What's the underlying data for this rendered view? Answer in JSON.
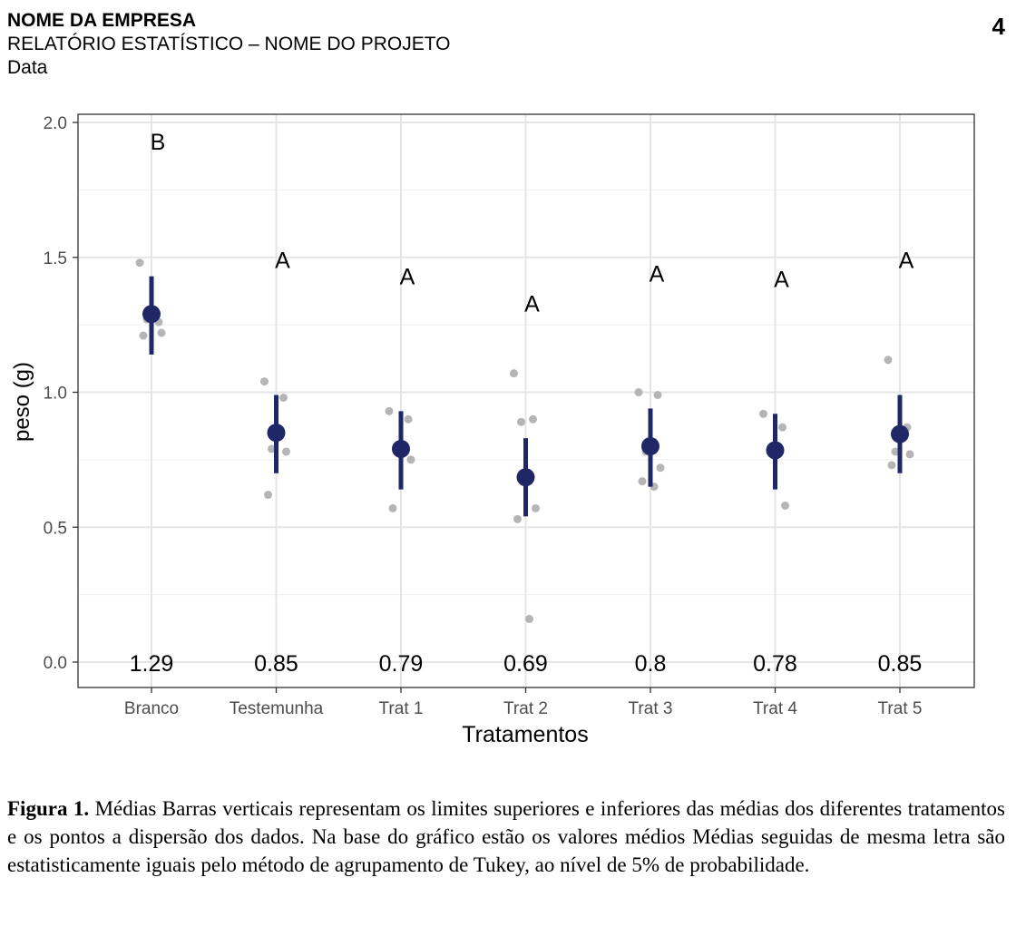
{
  "header": {
    "company": "NOME DA EMPRESA",
    "report": "RELATÓRIO ESTATÍSTICO – NOME DO PROJETO",
    "date": "Data",
    "page_number": "4"
  },
  "caption": {
    "label": "Figura 1.",
    "text": " Médias                                         Barras verticais representam os limites superiores e inferiores das médias dos diferentes tratamentos e os pontos a dispersão dos dados. Na base do gráfico estão os valores médios                                Médias seguidas de mesma letra são estatisticamente iguais pelo método de agrupamento de Tukey, ao nível de 5% de probabilidade."
  },
  "colors": {
    "mean": "#1f2766",
    "points": "#b5b5b5",
    "grid_major": "#e5e5e5",
    "grid_minor": "#f2f2f2",
    "panel_border": "#333333"
  },
  "chart_data": {
    "type": "scatter",
    "xlabel": "Tratamentos",
    "ylabel": "peso (g)",
    "ylim": [
      -0.09,
      2.02
    ],
    "yticks": [
      "0.0",
      "0.5",
      "1.0",
      "1.5",
      "2.0"
    ],
    "grid": true,
    "categories": [
      "Branco",
      "Testemunha",
      "Trat 1",
      "Trat 2",
      "Trat 3",
      "Trat 4",
      "Trat 5"
    ],
    "means": [
      1.29,
      0.85,
      0.79,
      0.685,
      0.8,
      0.785,
      0.845
    ],
    "mean_labels": [
      "1.29",
      "0.85",
      "0.79",
      "0.69",
      "0.8",
      "0.78",
      "0.85"
    ],
    "lower": [
      1.14,
      0.7,
      0.64,
      0.54,
      0.65,
      0.64,
      0.7
    ],
    "upper": [
      1.43,
      0.99,
      0.93,
      0.83,
      0.94,
      0.92,
      0.99
    ],
    "group_letters": [
      "B",
      "A",
      "A",
      "A",
      "A",
      "A",
      "A"
    ],
    "letter_y": [
      1.93,
      1.49,
      1.43,
      1.33,
      1.44,
      1.42,
      1.49
    ],
    "points": [
      [
        1.48,
        1.26,
        1.27,
        1.22,
        1.21
      ],
      [
        1.04,
        0.98,
        0.79,
        0.78,
        0.62
      ],
      [
        0.93,
        0.9,
        0.8,
        0.75,
        0.57
      ],
      [
        1.07,
        0.9,
        0.89,
        0.57,
        0.53,
        0.16
      ],
      [
        1.0,
        0.99,
        0.78,
        0.72,
        0.67,
        0.65
      ],
      [
        0.92,
        0.87,
        0.78,
        0.58
      ],
      [
        1.12,
        0.87,
        0.78,
        0.77,
        0.73
      ]
    ]
  }
}
